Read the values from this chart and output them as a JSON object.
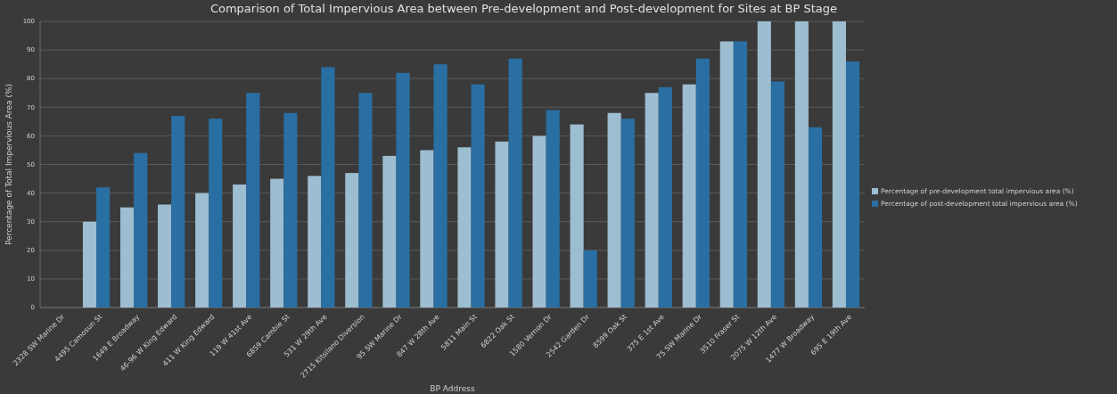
{
  "chart_data": {
    "type": "bar",
    "title": "Comparison of Total Impervious Area between Pre-development and Post-development for Sites at BP Stage",
    "xlabel": "BP Address",
    "ylabel": "Percentage of Total Impervious Area (%)",
    "categories": [
      "2328 SW Marine Dr",
      "4495 Camosun St",
      "1649 E Broadway",
      "46-96 W King Edward",
      "411 W King Edward",
      "119 W 41st Ave",
      "6859 Cambie St",
      "531 W 29th Ave",
      "2715 Kitsilano Diversion",
      "95 SW Marine Dr",
      "847 W 28th Ave",
      "5811 Main St",
      "6822 Oak St",
      "1580 Vernon Dr",
      "2542 Garden Dr",
      "8599 Oak St",
      "375 E 1st Ave",
      "75 SW Marine Dr",
      "3510 Fraser St",
      "2075 W 12th Ave",
      "1477 W Broadway",
      "695 E 19th Ave"
    ],
    "series": [
      {
        "name": "Percentage of pre-development total impervious area (%)",
        "color": "#9dbdd1",
        "values": [
          null,
          30,
          35,
          36,
          40,
          43,
          45,
          46,
          47,
          53,
          55,
          56,
          58,
          60,
          64,
          68,
          75,
          78,
          93,
          100,
          100,
          100
        ]
      },
      {
        "name": "Percentage of post-development total impervious area (%)",
        "color": "#2a6fa3",
        "values": [
          null,
          42,
          54,
          67,
          66,
          75,
          68,
          84,
          75,
          82,
          85,
          78,
          87,
          69,
          20,
          66,
          77,
          87,
          93,
          79,
          63,
          86
        ]
      }
    ],
    "ylim": [
      0,
      100
    ],
    "yticks": [
      0,
      10,
      20,
      30,
      40,
      50,
      60,
      70,
      80,
      90,
      100
    ],
    "grid": "y",
    "legend": "right"
  }
}
